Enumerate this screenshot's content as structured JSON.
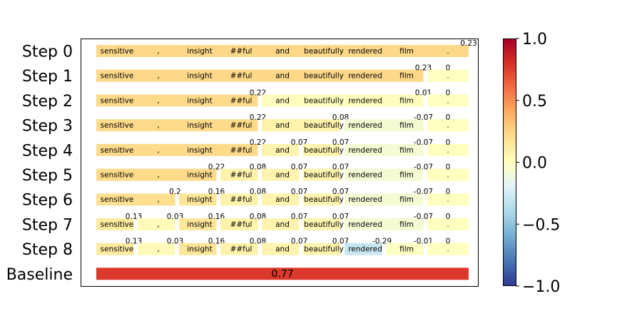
{
  "chart_data": {
    "type": "heatmap",
    "tokens": [
      "sensitive",
      ",",
      "insight",
      "##ful",
      "and",
      "beautifully",
      "rendered",
      "film",
      "."
    ],
    "rows": [
      {
        "label": "Step 0",
        "segments": [
          {
            "start": 0,
            "end": 9,
            "value": 0.23
          }
        ]
      },
      {
        "label": "Step 1",
        "segments": [
          {
            "start": 0,
            "end": 8,
            "value": 0.23
          },
          {
            "start": 8,
            "end": 9,
            "value": 0.0
          }
        ]
      },
      {
        "label": "Step 2",
        "segments": [
          {
            "start": 0,
            "end": 4,
            "value": 0.22
          },
          {
            "start": 4,
            "end": 8,
            "value": 0.01
          },
          {
            "start": 8,
            "end": 9,
            "value": 0.0
          }
        ]
      },
      {
        "label": "Step 3",
        "segments": [
          {
            "start": 0,
            "end": 4,
            "value": 0.22
          },
          {
            "start": 4,
            "end": 6,
            "value": 0.08
          },
          {
            "start": 6,
            "end": 8,
            "value": -0.07
          },
          {
            "start": 8,
            "end": 9,
            "value": 0.0
          }
        ]
      },
      {
        "label": "Step 4",
        "segments": [
          {
            "start": 0,
            "end": 4,
            "value": 0.22
          },
          {
            "start": 4,
            "end": 5,
            "value": 0.07
          },
          {
            "start": 5,
            "end": 6,
            "value": 0.07
          },
          {
            "start": 6,
            "end": 8,
            "value": -0.07
          },
          {
            "start": 8,
            "end": 9,
            "value": 0.0
          }
        ]
      },
      {
        "label": "Step 5",
        "segments": [
          {
            "start": 0,
            "end": 3,
            "value": 0.22
          },
          {
            "start": 3,
            "end": 4,
            "value": 0.08
          },
          {
            "start": 4,
            "end": 5,
            "value": 0.07
          },
          {
            "start": 5,
            "end": 6,
            "value": 0.07
          },
          {
            "start": 6,
            "end": 8,
            "value": -0.07
          },
          {
            "start": 8,
            "end": 9,
            "value": 0.0
          }
        ]
      },
      {
        "label": "Step 6",
        "segments": [
          {
            "start": 0,
            "end": 2,
            "value": 0.2
          },
          {
            "start": 2,
            "end": 3,
            "value": 0.16
          },
          {
            "start": 3,
            "end": 4,
            "value": 0.08
          },
          {
            "start": 4,
            "end": 5,
            "value": 0.07
          },
          {
            "start": 5,
            "end": 6,
            "value": 0.07
          },
          {
            "start": 6,
            "end": 8,
            "value": -0.07
          },
          {
            "start": 8,
            "end": 9,
            "value": 0.0
          }
        ]
      },
      {
        "label": "Step 7",
        "segments": [
          {
            "start": 0,
            "end": 1,
            "value": 0.13
          },
          {
            "start": 1,
            "end": 2,
            "value": 0.03
          },
          {
            "start": 2,
            "end": 3,
            "value": 0.16
          },
          {
            "start": 3,
            "end": 4,
            "value": 0.08
          },
          {
            "start": 4,
            "end": 5,
            "value": 0.07
          },
          {
            "start": 5,
            "end": 6,
            "value": 0.07
          },
          {
            "start": 6,
            "end": 8,
            "value": -0.07
          },
          {
            "start": 8,
            "end": 9,
            "value": 0.0
          }
        ]
      },
      {
        "label": "Step 8",
        "segments": [
          {
            "start": 0,
            "end": 1,
            "value": 0.13
          },
          {
            "start": 1,
            "end": 2,
            "value": 0.03
          },
          {
            "start": 2,
            "end": 3,
            "value": 0.16
          },
          {
            "start": 3,
            "end": 4,
            "value": 0.08
          },
          {
            "start": 4,
            "end": 5,
            "value": 0.07
          },
          {
            "start": 5,
            "end": 6,
            "value": 0.07
          },
          {
            "start": 6,
            "end": 7,
            "value": -0.29
          },
          {
            "start": 7,
            "end": 8,
            "value": -0.01
          },
          {
            "start": 8,
            "end": 9,
            "value": 0.0
          }
        ]
      }
    ],
    "baseline": {
      "label": "Baseline",
      "value": 0.77
    },
    "colorbar": {
      "colormap": "RdYlBu_r",
      "range": [
        -1.0,
        1.0
      ],
      "ticks": [
        "1.0",
        "0.5",
        "0.0",
        "−0.5",
        "−1.0"
      ],
      "tick_values": [
        1.0,
        0.5,
        0.0,
        -0.5,
        -1.0
      ]
    }
  }
}
